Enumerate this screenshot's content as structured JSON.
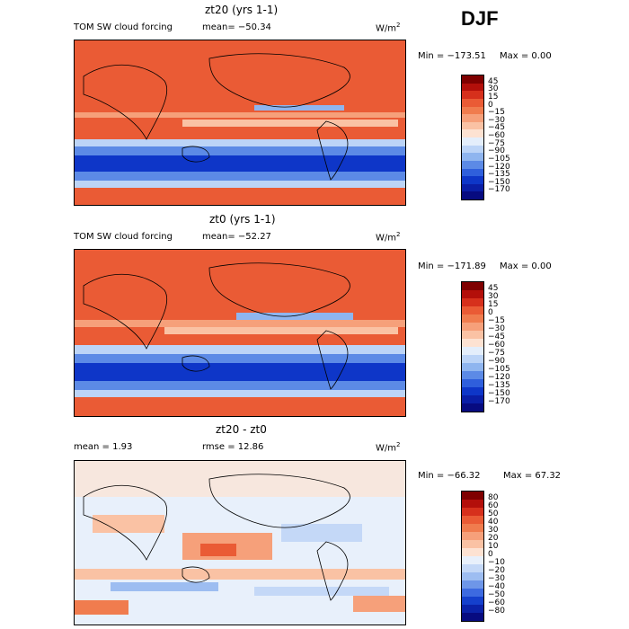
{
  "season": "DJF",
  "chart_data": [
    {
      "type": "heatmap",
      "title": "zt20 (yrs 1-1)",
      "left_label": "TOM SW cloud forcing",
      "mean_text": "mean= −50.34",
      "units_base": "W/m",
      "units_exp": "2",
      "min_text": "Min = −173.51",
      "max_text": "Max =    0.00",
      "min": -173.51,
      "max": 0.0,
      "mean": -50.34,
      "levels": [
        "45",
        "30",
        "15",
        "0",
        "−15",
        "−30",
        "−45",
        "−60",
        "−75",
        "−90",
        "−105",
        "−120",
        "−135",
        "−150",
        "−170"
      ],
      "colors": [
        "#7f0000",
        "#b30f0a",
        "#d6301c",
        "#ea5b35",
        "#f07c4e",
        "#f6a07a",
        "#fac2a4",
        "#fde2d2",
        "#e4eefb",
        "#bcd4f7",
        "#8fb5ef",
        "#5c8ae6",
        "#2f5fdc",
        "#0e36c8",
        "#0a1ea6",
        "#070b80"
      ]
    },
    {
      "type": "heatmap",
      "title": "zt0 (yrs 1-1)",
      "left_label": "TOM SW cloud forcing",
      "mean_text": "mean= −52.27",
      "units_base": "W/m",
      "units_exp": "2",
      "min_text": "Min = −171.89",
      "max_text": "Max =    0.00",
      "min": -171.89,
      "max": 0.0,
      "mean": -52.27,
      "levels": [
        "45",
        "30",
        "15",
        "0",
        "−15",
        "−30",
        "−45",
        "−60",
        "−75",
        "−90",
        "−105",
        "−120",
        "−135",
        "−150",
        "−170"
      ],
      "colors": [
        "#7f0000",
        "#b30f0a",
        "#d6301c",
        "#ea5b35",
        "#f07c4e",
        "#f6a07a",
        "#fac2a4",
        "#fde2d2",
        "#e4eefb",
        "#bcd4f7",
        "#8fb5ef",
        "#5c8ae6",
        "#2f5fdc",
        "#0e36c8",
        "#0a1ea6",
        "#070b80"
      ]
    },
    {
      "type": "heatmap",
      "title": "zt20 - zt0",
      "left_label": "mean =    1.93",
      "mean_text": "rmse =   12.86",
      "units_base": "W/m",
      "units_exp": "2",
      "min_text": "Min = −66.32",
      "max_text": "Max =  67.32",
      "min": -66.32,
      "max": 67.32,
      "mean": 1.93,
      "rmse": 12.86,
      "levels": [
        "80",
        "60",
        "50",
        "40",
        "30",
        "20",
        "10",
        "0",
        "−10",
        "−20",
        "−30",
        "−40",
        "−50",
        "−60",
        "−80"
      ],
      "colors": [
        "#7f0000",
        "#b30f0a",
        "#d6301c",
        "#ea5b35",
        "#f07c4e",
        "#f6a07a",
        "#fac2a4",
        "#fde2d2",
        "#e8f0fb",
        "#c4d8f7",
        "#9dbdf1",
        "#6e96e8",
        "#3d6ae0",
        "#1540cc",
        "#0b22a8",
        "#070b80"
      ]
    }
  ]
}
